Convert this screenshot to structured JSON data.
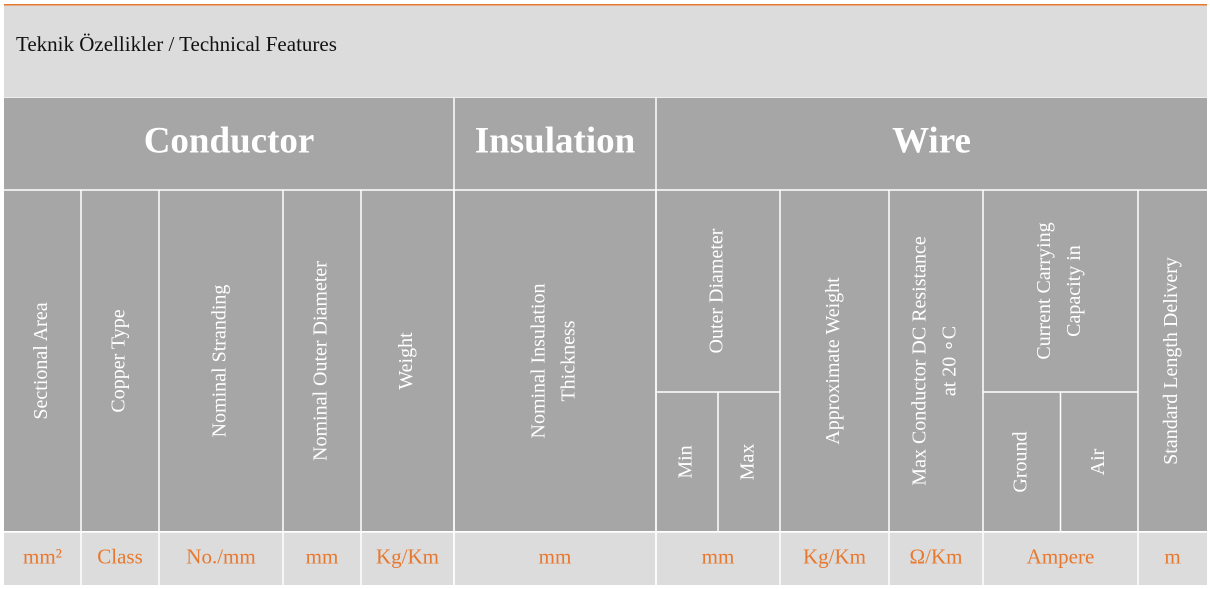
{
  "header": {
    "title": "Teknik Özellikler / Technical Features"
  },
  "groups": [
    "Conductor",
    "Insulation",
    "Wire"
  ],
  "columns": [
    {
      "label": [
        "Sectional Area"
      ],
      "unit": "mm²"
    },
    {
      "label": [
        "Copper Type"
      ],
      "unit": "Class"
    },
    {
      "label": [
        "Nominal Stranding"
      ],
      "unit": "No./mm"
    },
    {
      "label": [
        "Nominal Outer Diameter"
      ],
      "unit": "mm"
    },
    {
      "label": [
        "Weight"
      ],
      "unit": "Kg/Km"
    },
    {
      "label": [
        "Nominal Insulation",
        "Thickness"
      ],
      "unit": "mm"
    },
    {
      "label": [
        "Outer Diameter"
      ],
      "sub": [
        "Min",
        "Max"
      ],
      "unit": "mm"
    },
    {
      "label": [
        "Approximate Weight"
      ],
      "unit": "Kg/Km"
    },
    {
      "label": [
        "Max Conductor DC Resistance",
        "at 20 ∘C"
      ],
      "unit": "Ω/Km"
    },
    {
      "label": [
        "Current Carrying",
        "Capacity in"
      ],
      "sub": [
        "Ground",
        "Air"
      ],
      "unit": "Ampere"
    },
    {
      "label": [
        "Standard Length Delivery"
      ],
      "unit": "m"
    }
  ]
}
